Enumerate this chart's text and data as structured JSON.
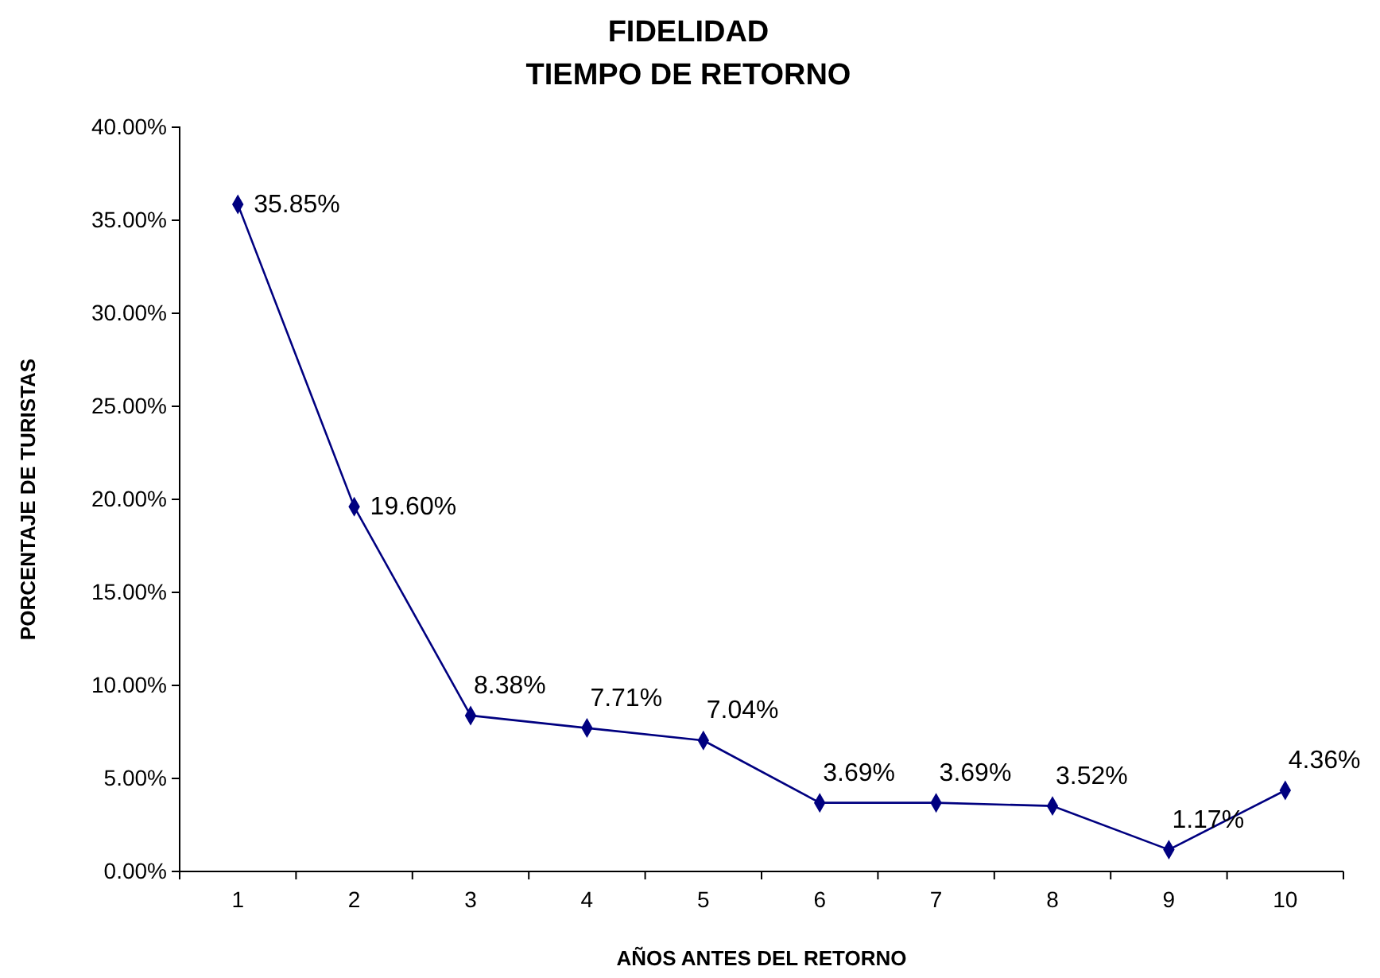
{
  "chart_data": {
    "type": "line",
    "title": "FIDELIDAD",
    "subtitle": "TIEMPO DE RETORNO",
    "xlabel": "AÑOS ANTES DEL RETORNO",
    "ylabel": "PORCENTAJE DE TURISTAS",
    "categories": [
      "1",
      "2",
      "3",
      "4",
      "5",
      "6",
      "7",
      "8",
      "9",
      "10"
    ],
    "series": [
      {
        "color": "#000080",
        "values": [
          35.85,
          19.6,
          8.38,
          7.71,
          7.04,
          3.69,
          3.69,
          3.52,
          1.17,
          4.36
        ],
        "value_labels": [
          "35.85%",
          "19.60%",
          "8.38%",
          "7.71%",
          "7.04%",
          "3.69%",
          "3.69%",
          "3.52%",
          "1.17%",
          "4.36%"
        ]
      }
    ],
    "ylim": [
      0,
      40
    ],
    "yticks": [
      {
        "value": 0,
        "label": "0.00%"
      },
      {
        "value": 5,
        "label": "5.00%"
      },
      {
        "value": 10,
        "label": "10.00%"
      },
      {
        "value": 15,
        "label": "15.00%"
      },
      {
        "value": 20,
        "label": "20.00%"
      },
      {
        "value": 25,
        "label": "25.00%"
      },
      {
        "value": 30,
        "label": "30.00%"
      },
      {
        "value": 35,
        "label": "35.00%"
      },
      {
        "value": 40,
        "label": "40.00%"
      }
    ],
    "grid": false,
    "marker": "diamond",
    "line_style": "solid"
  }
}
